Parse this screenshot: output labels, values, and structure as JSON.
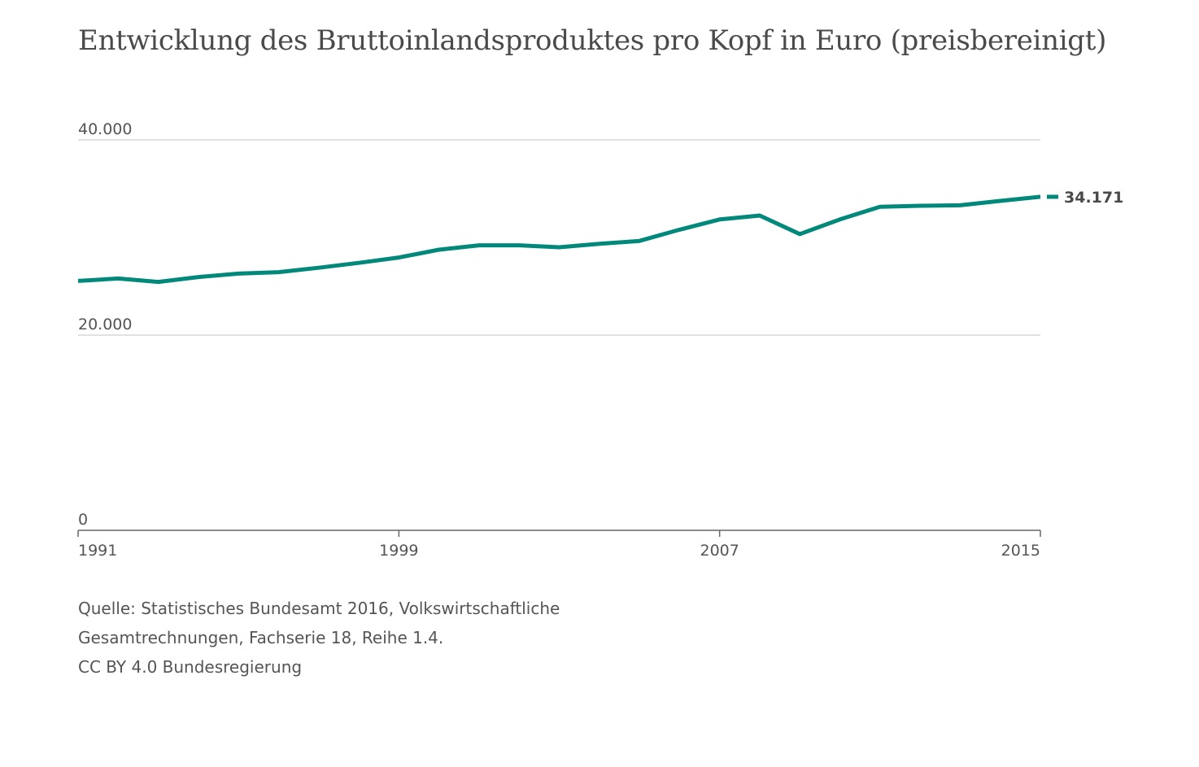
{
  "chart_data": {
    "type": "line",
    "title": "Entwicklung des Bruttoinlandsproduktes pro Kopf in Euro (preisbereinigt)",
    "x": [
      1991,
      1992,
      1993,
      1994,
      1995,
      1996,
      1997,
      1998,
      1999,
      2000,
      2001,
      2002,
      2003,
      2004,
      2005,
      2006,
      2007,
      2008,
      2009,
      2010,
      2011,
      2012,
      2013,
      2014,
      2015
    ],
    "series": [
      {
        "values": [
          25550,
          25800,
          25450,
          25950,
          26300,
          26450,
          26900,
          27400,
          27950,
          28750,
          29200,
          29200,
          29000,
          29350,
          29650,
          30800,
          31850,
          32250,
          30350,
          31850,
          33150,
          33250,
          33300,
          33750,
          34171
        ],
        "color": "#00897b"
      }
    ],
    "ylim": [
      0,
      40000
    ],
    "y_ticks": [
      0,
      20000,
      40000
    ],
    "y_tick_labels": [
      "0",
      "20.000",
      "40.000"
    ],
    "x_ticks": [
      1991,
      1999,
      2007,
      2015
    ],
    "x_tick_labels": [
      "1991",
      "1999",
      "2007",
      "2015"
    ],
    "end_label": "34.171",
    "grid": true,
    "xlabel": "",
    "ylabel": ""
  },
  "source": {
    "lines": [
      "Quelle: Statistisches Bundesamt 2016, Volkswirtschaftliche",
      "Gesamtrechnungen, Fachserie 18, Reihe 1.4.",
      "CC BY 4.0 Bundesregierung"
    ]
  }
}
